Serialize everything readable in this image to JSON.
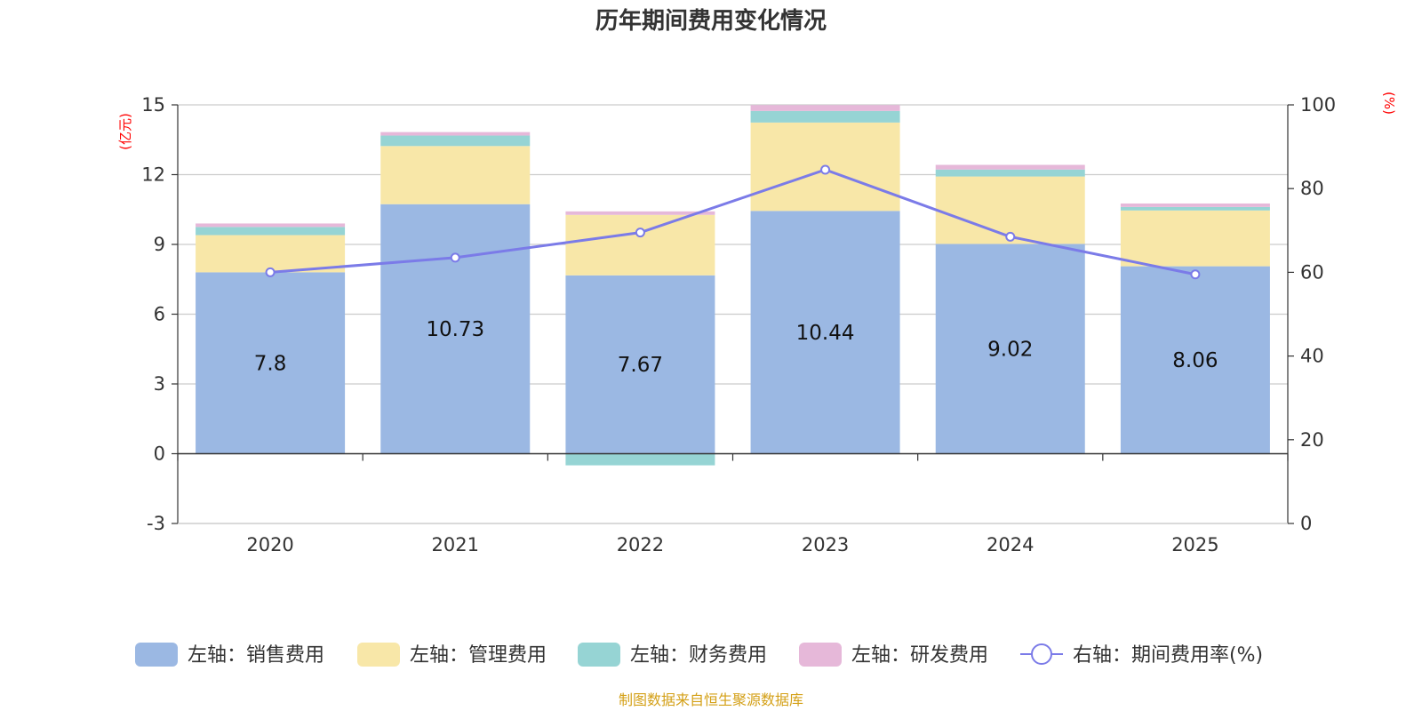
{
  "chart_data": {
    "type": "bar",
    "stacked": true,
    "title": "历年期间费用变化情况",
    "categories": [
      "2020",
      "2021",
      "2022",
      "2023",
      "2024",
      "2025"
    ],
    "left_axis": {
      "unit": "(亿元)",
      "ylim": [
        -3,
        15
      ],
      "ticks": [
        -3,
        0,
        3,
        6,
        9,
        12,
        15
      ]
    },
    "right_axis": {
      "unit": "(%)",
      "ylim": [
        0,
        100
      ],
      "ticks": [
        0,
        20,
        40,
        60,
        80,
        100
      ]
    },
    "series": [
      {
        "name": "左轴：销售费用",
        "axis": "left",
        "color": "#9bb8e3",
        "values": [
          7.8,
          10.73,
          7.67,
          10.44,
          9.02,
          8.06
        ],
        "show_labels": true
      },
      {
        "name": "左轴：管理费用",
        "axis": "left",
        "color": "#f8e7a8",
        "values": [
          1.6,
          2.5,
          2.6,
          3.8,
          2.9,
          2.4
        ]
      },
      {
        "name": "左轴：财务费用",
        "axis": "left",
        "color": "#96d4d4",
        "values": [
          0.35,
          0.45,
          -0.5,
          0.5,
          0.3,
          0.15
        ]
      },
      {
        "name": "左轴：研发费用",
        "axis": "left",
        "color": "#e6b8d9",
        "values": [
          0.15,
          0.15,
          0.15,
          0.25,
          0.2,
          0.15
        ]
      }
    ],
    "line": {
      "name": "右轴：期间费用率(%)",
      "axis": "right",
      "color": "#7b7be8",
      "values": [
        60.0,
        63.5,
        69.5,
        84.5,
        68.5,
        59.5
      ]
    },
    "source": "制图数据来自恒生聚源数据库"
  }
}
